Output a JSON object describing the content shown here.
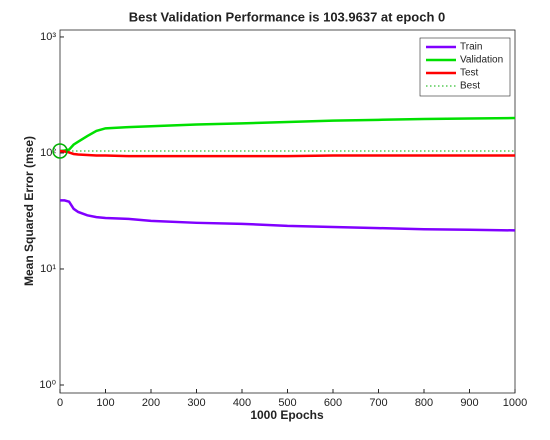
{
  "chart_data": {
    "type": "line",
    "title": "Best Validation Performance is 103.9637 at epoch 0",
    "x_label": "1000 Epochs",
    "y_label": "Mean Squared Error  (mse)",
    "x": [
      0,
      10,
      20,
      30,
      40,
      60,
      80,
      100,
      150,
      200,
      300,
      400,
      500,
      600,
      700,
      800,
      900,
      1000
    ],
    "series": [
      {
        "name": "Train",
        "color": "#8000ff",
        "values": [
          39,
          39,
          38,
          33,
          31,
          29,
          28,
          27.5,
          27,
          26,
          25,
          24.5,
          23.5,
          23,
          22.5,
          22,
          21.8,
          21.5
        ]
      },
      {
        "name": "Validation",
        "color": "#00e000",
        "values": [
          104,
          105,
          107,
          118,
          125,
          140,
          155,
          163,
          167,
          170,
          176,
          180,
          185,
          190,
          193,
          196,
          198,
          200
        ]
      },
      {
        "name": "Test",
        "color": "#ff0000",
        "values": [
          104,
          103,
          101,
          98,
          97,
          96,
          95,
          95,
          94,
          94,
          94,
          94,
          94,
          95,
          95,
          95,
          95,
          95
        ]
      }
    ],
    "best": {
      "name": "Best",
      "color": "#00b000",
      "value": 103.9637,
      "epoch": 0
    },
    "xlim": [
      0,
      1000
    ],
    "xticks": [
      0,
      100,
      200,
      300,
      400,
      500,
      600,
      700,
      800,
      900,
      1000
    ],
    "ylim": [
      0.853,
      1148
    ],
    "yticks": [
      {
        "value": 1,
        "label": "10⁰"
      },
      {
        "value": 10,
        "label": "10¹"
      },
      {
        "value": 100,
        "label": "10²"
      },
      {
        "value": 1000,
        "label": "10³"
      }
    ],
    "log_y": true,
    "grid": false,
    "legend": "upper right"
  }
}
